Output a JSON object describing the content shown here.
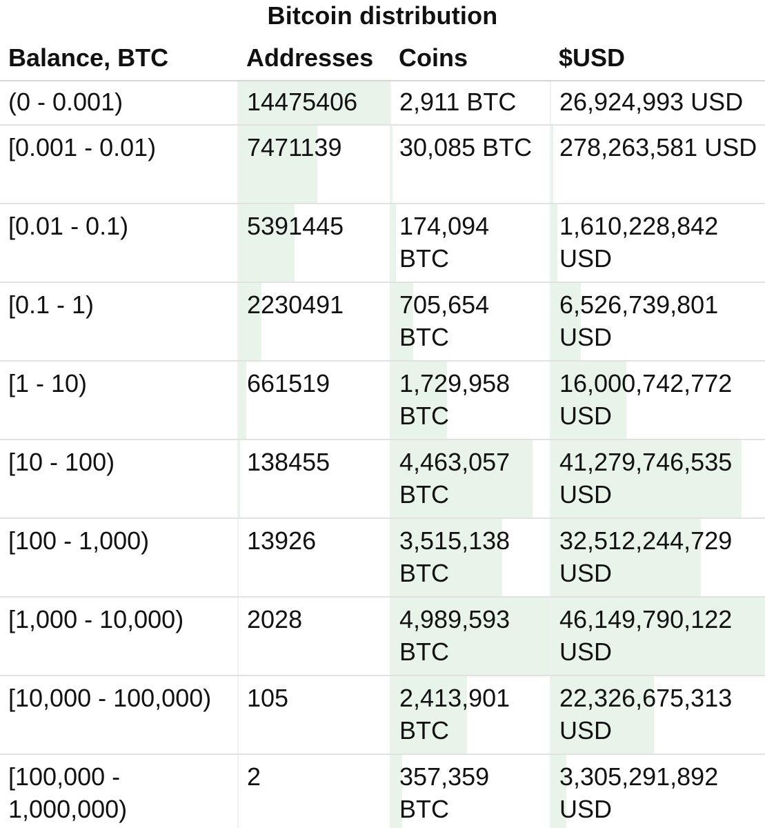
{
  "title": "Bitcoin distribution",
  "colors": {
    "bar": "#e8f4ea",
    "border": "#e2e2e2",
    "text": "#111111"
  },
  "headers": [
    "Balance, BTC",
    "Addresses",
    "Coins",
    "$USD"
  ],
  "rows": [
    {
      "range": "(0 - 0.001)",
      "addresses": "14475406",
      "coins": "2,911 BTC",
      "usd": "26,924,993 USD",
      "addresses_fill": 1.0,
      "coins_fill": 0.0,
      "usd_fill": 0.0
    },
    {
      "range": "[0.001 - 0.01)",
      "addresses": "7471139",
      "coins": "30,085 BTC",
      "usd": "278,263,581 USD",
      "addresses_fill": 0.52,
      "coins_fill": 0.01,
      "usd_fill": 0.01
    },
    {
      "range": "[0.01 - 0.1)",
      "addresses": "5391445",
      "coins": "174,094 BTC",
      "usd": "1,610,228,842 USD",
      "addresses_fill": 0.37,
      "coins_fill": 0.03,
      "usd_fill": 0.03
    },
    {
      "range": "[0.1 - 1)",
      "addresses": "2230491",
      "coins": "705,654 BTC",
      "usd": "6,526,739,801 USD",
      "addresses_fill": 0.15,
      "coins_fill": 0.14,
      "usd_fill": 0.14
    },
    {
      "range": "[1 - 10)",
      "addresses": "661519",
      "coins": "1,729,958 BTC",
      "usd": "16,000,742,772 USD",
      "addresses_fill": 0.05,
      "coins_fill": 0.35,
      "usd_fill": 0.35
    },
    {
      "range": "[10 - 100)",
      "addresses": "138455",
      "coins": "4,463,057 BTC",
      "usd": "41,279,746,535 USD",
      "addresses_fill": 0.01,
      "coins_fill": 0.89,
      "usd_fill": 0.89
    },
    {
      "range": "[100 - 1,000)",
      "addresses": "13926",
      "coins": "3,515,138 BTC",
      "usd": "32,512,244,729 USD",
      "addresses_fill": 0.0,
      "coins_fill": 0.7,
      "usd_fill": 0.7
    },
    {
      "range": "[1,000 - 10,000)",
      "addresses": "2028",
      "coins": "4,989,593 BTC",
      "usd": "46,149,790,122 USD",
      "addresses_fill": 0.0,
      "coins_fill": 1.0,
      "usd_fill": 1.0
    },
    {
      "range": "[10,000 - 100,000)",
      "addresses": "105",
      "coins": "2,413,901 BTC",
      "usd": "22,326,675,313 USD",
      "addresses_fill": 0.0,
      "coins_fill": 0.48,
      "usd_fill": 0.48
    },
    {
      "range": "[100,000 - 1,000,000)",
      "addresses": "2",
      "coins": "357,359 BTC",
      "usd": "3,305,291,892 USD",
      "addresses_fill": 0.0,
      "coins_fill": 0.07,
      "usd_fill": 0.07
    }
  ]
}
